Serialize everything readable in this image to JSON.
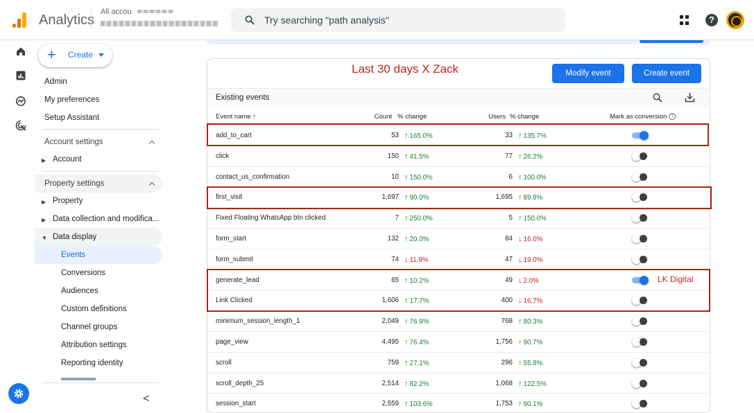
{
  "header": {
    "app_name": "Analytics",
    "account_label": "All accou",
    "search_placeholder": "Try searching \"path analysis\""
  },
  "nav": {
    "create_label": "Create",
    "admin": "Admin",
    "my_preferences": "My preferences",
    "setup_assistant": "Setup Assistant",
    "account_settings": "Account settings",
    "account": "Account",
    "property_settings": "Property settings",
    "property": "Property",
    "data_collection": "Data collection and modifica...",
    "data_display": "Data display",
    "children": [
      "Events",
      "Conversions",
      "Audiences",
      "Custom definitions",
      "Channel groups",
      "Attribution settings",
      "Reporting identity"
    ],
    "collapse_glyph": "<"
  },
  "card": {
    "title": "Last 30 days X Zack",
    "modify_button": "Modify event",
    "create_button": "Create event",
    "section_title": "Existing events",
    "watermark": "LK Digital"
  },
  "table": {
    "columns": {
      "event_name": "Event name ↑",
      "count": "Count",
      "count_change": "% change",
      "users": "Users",
      "users_change": "% change",
      "conversion": "Mark as conversion"
    },
    "rows": [
      {
        "name": "add_to_cart",
        "count": "53",
        "count_change": "165.0%",
        "count_dir": "up",
        "users": "33",
        "users_change": "135.7%",
        "users_dir": "up",
        "conversion": true
      },
      {
        "name": "click",
        "count": "150",
        "count_change": "41.5%",
        "count_dir": "up",
        "users": "77",
        "users_change": "26.2%",
        "users_dir": "up",
        "conversion": false
      },
      {
        "name": "contact_us_confirmation",
        "count": "10",
        "count_change": "150.0%",
        "count_dir": "up",
        "users": "6",
        "users_change": "100.0%",
        "users_dir": "up",
        "conversion": false
      },
      {
        "name": "first_visit",
        "count": "1,697",
        "count_change": "90.0%",
        "count_dir": "up",
        "users": "1,695",
        "users_change": "89.8%",
        "users_dir": "up",
        "conversion": false
      },
      {
        "name": "Fixed Floating WhatsApp btn clicked",
        "count": "7",
        "count_change": "250.0%",
        "count_dir": "up",
        "users": "5",
        "users_change": "150.0%",
        "users_dir": "up",
        "conversion": false
      },
      {
        "name": "form_start",
        "count": "132",
        "count_change": "20.0%",
        "count_dir": "up",
        "users": "84",
        "users_change": "16.0%",
        "users_dir": "down",
        "conversion": false
      },
      {
        "name": "form_submit",
        "count": "74",
        "count_change": "11.9%",
        "count_dir": "down",
        "users": "47",
        "users_change": "19.0%",
        "users_dir": "down",
        "conversion": false
      },
      {
        "name": "generate_lead",
        "count": "65",
        "count_change": "10.2%",
        "count_dir": "up",
        "users": "49",
        "users_change": "2.0%",
        "users_dir": "down",
        "conversion": true
      },
      {
        "name": "Link Clicked",
        "count": "1,606",
        "count_change": "17.7%",
        "count_dir": "up",
        "users": "400",
        "users_change": "16.7%",
        "users_dir": "down",
        "conversion": false
      },
      {
        "name": "minimum_session_length_1",
        "count": "2,049",
        "count_change": "76.9%",
        "count_dir": "up",
        "users": "768",
        "users_change": "80.3%",
        "users_dir": "up",
        "conversion": false
      },
      {
        "name": "page_view",
        "count": "4,495",
        "count_change": "76.4%",
        "count_dir": "up",
        "users": "1,756",
        "users_change": "90.7%",
        "users_dir": "up",
        "conversion": false
      },
      {
        "name": "scroll",
        "count": "759",
        "count_change": "27.1%",
        "count_dir": "up",
        "users": "296",
        "users_change": "55.8%",
        "users_dir": "up",
        "conversion": false
      },
      {
        "name": "scroll_depth_25",
        "count": "2,514",
        "count_change": "82.2%",
        "count_dir": "up",
        "users": "1,068",
        "users_change": "122.5%",
        "users_dir": "up",
        "conversion": false
      },
      {
        "name": "session_start",
        "count": "2,559",
        "count_change": "103.6%",
        "count_dir": "up",
        "users": "1,753",
        "users_change": "90.1%",
        "users_dir": "up",
        "conversion": false
      }
    ]
  },
  "colors": {
    "accent": "#1a73e8",
    "positive": "#188038",
    "negative": "#c5221f",
    "annotation": "#a52714"
  }
}
